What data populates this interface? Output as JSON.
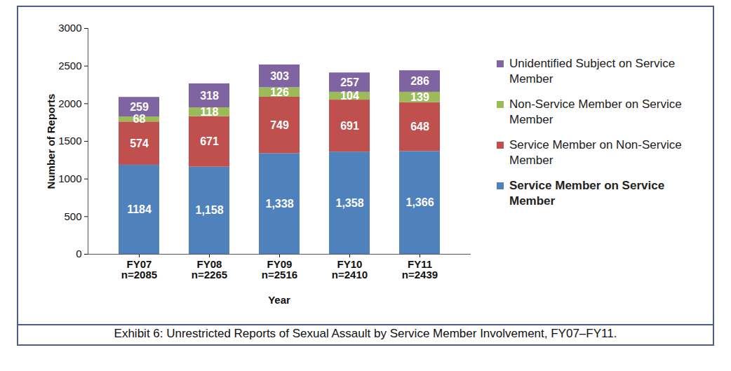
{
  "chart_data": {
    "type": "bar",
    "stacked": true,
    "data_labels": true,
    "grid": false,
    "legend": "right",
    "xlabel": "Year",
    "ylabel": "Number of Reports",
    "caption": "Exhibit 6:  Unrestricted Reports of Sexual Assault by Service Member Involvement, FY07–FY11.",
    "categories": [
      "FY07\nn=2085",
      "FY08\nn=2265",
      "FY09\nn=2516",
      "FY10\nn=2410",
      "FY11\nn=2439"
    ],
    "ylim": [
      0,
      3000
    ],
    "yticks": [
      0,
      500,
      1000,
      1500,
      2000,
      2500,
      3000
    ],
    "series": [
      {
        "name": "Service Member on Service Member",
        "color": "#4f81bd",
        "values": [
          1184,
          1158,
          1338,
          1358,
          1366
        ],
        "value_labels": [
          "1184",
          "1,158",
          "1,338",
          "1,358",
          "1,366"
        ]
      },
      {
        "name": "Service Member on Non-Service Member",
        "color": "#c0504d",
        "values": [
          574,
          671,
          749,
          691,
          648
        ]
      },
      {
        "name": "Non-Service Member on Service Member",
        "color": "#9bbb59",
        "values": [
          68,
          118,
          126,
          104,
          139
        ]
      },
      {
        "name": "Unidentified Subject on Service Member",
        "color": "#8064a2",
        "values": [
          259,
          318,
          303,
          257,
          286
        ]
      }
    ]
  }
}
